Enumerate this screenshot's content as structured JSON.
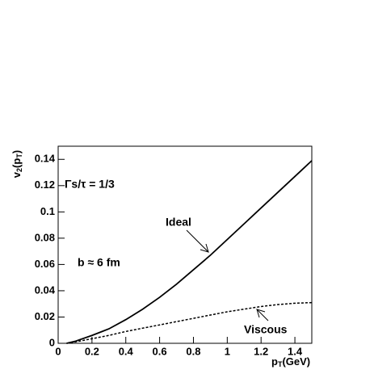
{
  "chart_data": {
    "type": "line",
    "ylabel_parts": [
      "v",
      "2",
      "(p",
      "T",
      ")"
    ],
    "xlabel_parts": [
      "p",
      "T",
      "(GeV)"
    ],
    "annotations": [
      "Γs/τ = 1/3",
      "b ≈ 6 fm"
    ],
    "x": [
      0.05,
      0.1,
      0.2,
      0.3,
      0.4,
      0.5,
      0.6,
      0.7,
      0.8,
      0.9,
      1.0,
      1.1,
      1.2,
      1.3,
      1.4,
      1.5
    ],
    "series": [
      {
        "name": "Ideal",
        "color": "#000000",
        "dash": false,
        "values": [
          0,
          0.0015,
          0.006,
          0.011,
          0.018,
          0.026,
          0.035,
          0.045,
          0.056,
          0.067,
          0.079,
          0.091,
          0.103,
          0.115,
          0.127,
          0.139
        ]
      },
      {
        "name": "Viscous",
        "color": "#000000",
        "dash": true,
        "values": [
          0,
          0.001,
          0.0035,
          0.006,
          0.009,
          0.0115,
          0.014,
          0.0165,
          0.019,
          0.0215,
          0.024,
          0.026,
          0.028,
          0.0295,
          0.0305,
          0.031
        ]
      }
    ],
    "xlim": [
      0,
      1.5
    ],
    "ylim": [
      0,
      0.15
    ],
    "xticks": [
      0,
      0.2,
      0.4,
      0.6,
      0.8,
      1,
      1.2,
      1.4
    ],
    "yticks": [
      0,
      0.02,
      0.04,
      0.06,
      0.08,
      0.1,
      0.12,
      0.14
    ]
  }
}
